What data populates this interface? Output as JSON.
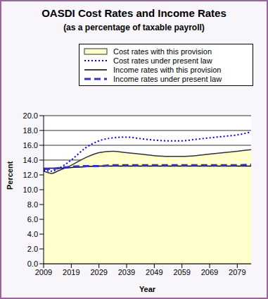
{
  "chart_data": {
    "type": "line",
    "title": "OASDI Cost Rates and Income Rates",
    "subtitle": "(as a percentage of taxable payroll)",
    "x_label": "Year",
    "y_label": "Percent",
    "x": [
      2009,
      2012,
      2014,
      2019,
      2024,
      2029,
      2034,
      2039,
      2044,
      2049,
      2054,
      2059,
      2064,
      2069,
      2074,
      2079,
      2084
    ],
    "series": [
      {
        "name": "Cost rates with this provision",
        "type": "area",
        "color": "#ffffcc",
        "line_style": "solid",
        "values": [
          12.5,
          12.2,
          12.5,
          13.3,
          14.3,
          15.0,
          15.2,
          15.0,
          14.8,
          14.6,
          14.5,
          14.5,
          14.6,
          14.8,
          15.0,
          15.2,
          15.4
        ]
      },
      {
        "name": "Cost rates under present law",
        "type": "line",
        "color": "#0000ff",
        "line_style": "dotted",
        "values": [
          12.6,
          12.5,
          12.8,
          14.0,
          15.6,
          16.6,
          17.0,
          17.1,
          16.9,
          16.7,
          16.6,
          16.6,
          16.8,
          17.0,
          17.2,
          17.4,
          17.8
        ]
      },
      {
        "name": "Income rates with this provision",
        "type": "line",
        "color": "#000000",
        "line_style": "solid",
        "values": [
          12.9,
          12.9,
          12.9,
          13.0,
          13.1,
          13.2,
          13.2,
          13.2,
          13.2,
          13.2,
          13.2,
          13.2,
          13.2,
          13.2,
          13.2,
          13.2,
          13.2
        ]
      },
      {
        "name": "Income rates under present law",
        "type": "line",
        "color": "#3333cc",
        "line_style": "dashed",
        "values": [
          12.8,
          12.8,
          12.9,
          13.1,
          13.2,
          13.2,
          13.3,
          13.3,
          13.3,
          13.3,
          13.3,
          13.3,
          13.3,
          13.3,
          13.3,
          13.3,
          13.4
        ]
      }
    ],
    "xlim": [
      2009,
      2084
    ],
    "xticks": [
      2009,
      2019,
      2029,
      2039,
      2049,
      2059,
      2069,
      2079
    ],
    "ylim": [
      0,
      20
    ],
    "yticks": [
      {
        "value": 0,
        "label": "0.0"
      },
      {
        "value": 2,
        "label": "2.0"
      },
      {
        "value": 4,
        "label": "4.0"
      },
      {
        "value": 6,
        "label": "6.0"
      },
      {
        "value": 8,
        "label": "8.0"
      },
      {
        "value": 10,
        "label": "10.0"
      },
      {
        "value": 12,
        "label": "12.0"
      },
      {
        "value": 14,
        "label": "14.0"
      },
      {
        "value": 16,
        "label": "16.0"
      },
      {
        "value": 18,
        "label": "18.0"
      },
      {
        "value": 20,
        "label": "20.0"
      }
    ],
    "grid": true,
    "legend": "top"
  }
}
